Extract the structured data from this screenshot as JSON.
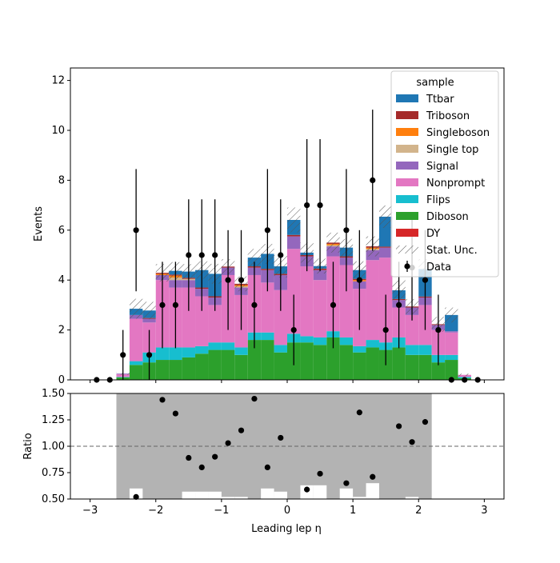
{
  "chart_data": {
    "type": "stacked-histogram-with-ratio",
    "main_panel": {
      "ylabel": "Events",
      "ylim": [
        0,
        12.5
      ],
      "yticks": [
        0,
        2,
        4,
        6,
        8,
        10,
        12
      ],
      "bin_edges": [
        -3.0,
        -2.8,
        -2.6,
        -2.4,
        -2.2,
        -2.0,
        -1.8,
        -1.6,
        -1.4,
        -1.2,
        -1.0,
        -0.8,
        -0.6,
        -0.4,
        -0.2,
        0.0,
        0.2,
        0.4,
        0.6,
        0.8,
        1.0,
        1.2,
        1.4,
        1.6,
        1.8,
        2.0,
        2.2,
        2.4,
        2.6,
        2.8,
        3.0
      ],
      "legend_title": "sample",
      "legend_location": "top-right",
      "stack_order_bottom_to_top": [
        "Diboson",
        "Flips",
        "Nonprompt",
        "Signal",
        "Single top",
        "Singleboson",
        "Triboson",
        "DY",
        "Ttbar"
      ],
      "series": [
        {
          "name": "Ttbar",
          "color": "#1f77b4",
          "values": [
            0,
            0,
            0,
            0.25,
            0.3,
            0,
            0.15,
            0.25,
            0.7,
            0.9,
            0,
            0,
            0.35,
            0.6,
            0.3,
            0.6,
            0.1,
            0.1,
            0,
            0.35,
            0.35,
            0,
            1.2,
            0.35,
            0,
            1.1,
            0,
            0.65,
            0,
            0
          ]
        },
        {
          "name": "Triboson",
          "color": "#a52a2a",
          "values": [
            0,
            0,
            0,
            0,
            0.03,
            0.04,
            0.04,
            0.04,
            0.05,
            0.05,
            0.04,
            0.05,
            0.05,
            0.05,
            0.05,
            0.06,
            0.05,
            0.06,
            0.05,
            0.05,
            0.05,
            0.05,
            0.04,
            0.04,
            0.04,
            0.04,
            0.03,
            0,
            0,
            0
          ]
        },
        {
          "name": "Singleboson",
          "color": "#ff7f0e",
          "values": [
            0,
            0,
            0,
            0,
            0,
            0.05,
            0.08,
            0,
            0,
            0,
            0,
            0.05,
            0,
            0,
            0,
            0,
            0,
            0,
            0.05,
            0,
            0.05,
            0.05,
            0,
            0,
            0,
            0,
            0,
            0,
            0,
            0
          ]
        },
        {
          "name": "Single top",
          "color": "#d2b48c",
          "values": [
            0,
            0,
            0,
            0,
            0,
            0,
            0.1,
            0.05,
            0,
            0,
            0,
            0.05,
            0,
            0,
            0,
            0,
            0,
            0,
            0.05,
            0,
            0,
            0.05,
            0,
            0,
            0,
            0,
            0,
            0,
            0,
            0
          ]
        },
        {
          "name": "Signal",
          "color": "#9467bd",
          "values": [
            0,
            0,
            0.03,
            0.15,
            0.15,
            0.2,
            0.3,
            0.3,
            0.3,
            0.3,
            0.3,
            0.3,
            0.3,
            0.5,
            0.6,
            0.5,
            0.4,
            0.4,
            0.4,
            0.3,
            0.3,
            0.4,
            0.4,
            0.3,
            0.3,
            0.3,
            0.2,
            0.05,
            0,
            0
          ]
        },
        {
          "name": "Nonprompt",
          "color": "#e377c2",
          "values": [
            0,
            0,
            0.1,
            1.7,
            1.2,
            2.7,
            2.4,
            2.4,
            2.0,
            1.5,
            2.7,
            2.1,
            2.3,
            2.0,
            2.2,
            3.4,
            2.8,
            2.3,
            3.0,
            2.9,
            2.3,
            3.2,
            3.4,
            1.2,
            1.2,
            1.6,
            1.0,
            0.9,
            0.08,
            0
          ]
        },
        {
          "name": "Flips",
          "color": "#17becf",
          "values": [
            0,
            0,
            0.02,
            0.15,
            0.4,
            0.5,
            0.5,
            0.4,
            0.3,
            0.3,
            0.3,
            0.3,
            0.3,
            0.3,
            0.3,
            0.35,
            0.25,
            0.3,
            0.25,
            0.3,
            0.25,
            0.3,
            0.3,
            0.4,
            0.4,
            0.4,
            0.3,
            0.2,
            0.05,
            0
          ]
        },
        {
          "name": "Diboson",
          "color": "#2ca02c",
          "values": [
            0,
            0,
            0.1,
            0.6,
            0.7,
            0.8,
            0.8,
            0.9,
            1.05,
            1.2,
            1.2,
            1.0,
            1.6,
            1.6,
            1.1,
            1.5,
            1.5,
            1.4,
            1.7,
            1.4,
            1.1,
            1.3,
            1.2,
            1.3,
            1.0,
            1.0,
            0.7,
            0.8,
            0.07,
            0
          ]
        },
        {
          "name": "DY",
          "color": "#d62728",
          "values": [
            0,
            0,
            0,
            0,
            0,
            0,
            0,
            0,
            0,
            0,
            0,
            0,
            0,
            0,
            0,
            0,
            0,
            0,
            0,
            0,
            0,
            0,
            0,
            0,
            0,
            0,
            0,
            0,
            0,
            0
          ]
        }
      ],
      "stat_unc_label": "Stat. Unc.",
      "stat_unc": [
        0,
        0,
        0.05,
        0.4,
        0.35,
        0.35,
        0.35,
        0.3,
        0.35,
        0.4,
        0.3,
        0.3,
        0.35,
        0.4,
        0.45,
        0.5,
        0.4,
        0.3,
        0.4,
        0.35,
        0.35,
        0.4,
        0.45,
        0.4,
        0.3,
        0.4,
        0.3,
        0.3,
        0.05,
        0
      ],
      "data_label": "Data",
      "data_x": [
        -2.9,
        -2.7,
        -2.5,
        -2.3,
        -2.1,
        -1.9,
        -1.7,
        -1.5,
        -1.3,
        -1.1,
        -0.9,
        -0.7,
        -0.5,
        -0.3,
        -0.1,
        0.1,
        0.3,
        0.5,
        0.7,
        0.9,
        1.1,
        1.3,
        1.5,
        1.7,
        1.9,
        2.1,
        2.3,
        2.5,
        2.7,
        2.9
      ],
      "data_y": [
        0,
        0,
        1,
        6,
        1,
        3,
        3,
        5,
        5,
        5,
        4,
        4,
        3,
        6,
        5,
        2,
        7,
        7,
        3,
        6,
        4,
        8,
        2,
        3,
        4.5,
        4,
        2,
        0,
        0,
        0
      ]
    },
    "ratio_panel": {
      "ylabel": "Ratio",
      "ylim": [
        0.5,
        1.5
      ],
      "yticks": [
        0.5,
        0.75,
        1.0,
        1.25,
        1.5
      ],
      "reference_line": 1.0,
      "band_color": "#b3b3b3",
      "band_x_range": [
        -2.6,
        2.2
      ],
      "band_low": [
        null,
        null,
        0.5,
        0.6,
        0.5,
        0.5,
        0.5,
        0.57,
        0.57,
        0.57,
        0.52,
        0.52,
        0.5,
        0.6,
        0.57,
        0.5,
        0.63,
        0.63,
        0.5,
        0.6,
        0.52,
        0.65,
        0.5,
        0.5,
        0.52,
        0.5,
        null,
        null,
        null,
        null
      ],
      "x": [
        -2.3,
        -1.9,
        -1.7,
        -1.5,
        -1.3,
        -1.1,
        -0.9,
        -0.7,
        -0.5,
        -0.3,
        -0.1,
        0.3,
        0.5,
        0.9,
        1.1,
        1.3,
        1.7,
        1.9,
        2.1
      ],
      "values": [
        0.52,
        1.44,
        1.31,
        0.89,
        0.8,
        0.9,
        1.03,
        1.15,
        1.45,
        0.8,
        1.08,
        0.59,
        0.74,
        0.65,
        1.32,
        0.71,
        1.19,
        1.04,
        1.23
      ]
    },
    "xlabel": "Leading lep η",
    "xlim": [
      -3.3,
      3.3
    ],
    "xticks": [
      -3,
      -2,
      -1,
      0,
      1,
      2,
      3
    ]
  }
}
